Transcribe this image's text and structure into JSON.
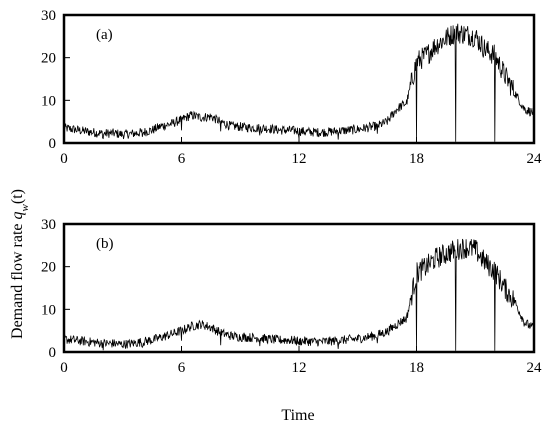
{
  "chart_data": [
    {
      "type": "line",
      "panel_label": "(a)",
      "xlim": [
        0,
        24
      ],
      "ylim": [
        0,
        30
      ],
      "xticks": [
        0,
        6,
        12,
        18,
        24
      ],
      "yticks": [
        0,
        10,
        20,
        30
      ],
      "grid": false,
      "series": [
        {
          "x": [
            0,
            0.5,
            1,
            1.5,
            2,
            2.5,
            3,
            3.5,
            4,
            4.5,
            5,
            5.5,
            6,
            6.5,
            7,
            7.5,
            8,
            8.5,
            9,
            9.5,
            10,
            10.5,
            11,
            11.5,
            12,
            12.5,
            13,
            13.5,
            14,
            14.5,
            15,
            15.5,
            16,
            16.5,
            17,
            17.5,
            18,
            18.5,
            19,
            19.5,
            20,
            20.5,
            21,
            21.5,
            22,
            22.5,
            23,
            23.5,
            24
          ],
          "values": [
            3.5,
            3.2,
            2.8,
            2.5,
            2.2,
            2.3,
            2.0,
            2.2,
            2.5,
            3.0,
            4.0,
            4.5,
            5.5,
            6.5,
            6.0,
            6.2,
            5.0,
            4.0,
            3.8,
            3.6,
            3.5,
            3.4,
            3.0,
            3.0,
            2.8,
            2.6,
            2.5,
            2.6,
            2.8,
            3.0,
            3.2,
            3.6,
            4.0,
            5.0,
            8.0,
            9.5,
            19.0,
            20.5,
            23.0,
            24.5,
            26.0,
            25.5,
            25.0,
            22.0,
            20.5,
            16.0,
            12.0,
            8.0,
            7.0
          ]
        }
      ]
    },
    {
      "type": "line",
      "panel_label": "(b)",
      "xlim": [
        0,
        24
      ],
      "ylim": [
        0,
        30
      ],
      "xticks": [
        0,
        6,
        12,
        18,
        24
      ],
      "yticks": [
        0,
        10,
        20,
        30
      ],
      "grid": false,
      "series": [
        {
          "x": [
            0,
            0.5,
            1,
            1.5,
            2,
            2.5,
            3,
            3.5,
            4,
            4.5,
            5,
            5.5,
            6,
            6.5,
            7,
            7.5,
            8,
            8.5,
            9,
            9.5,
            10,
            10.5,
            11,
            11.5,
            12,
            12.5,
            13,
            13.5,
            14,
            14.5,
            15,
            15.5,
            16,
            16.5,
            17,
            17.5,
            18,
            18.5,
            19,
            19.5,
            20,
            20.5,
            21,
            21.5,
            22,
            22.5,
            23,
            23.5,
            24
          ],
          "values": [
            3.0,
            2.8,
            2.5,
            2.3,
            2.0,
            2.0,
            1.8,
            2.0,
            2.4,
            2.8,
            3.5,
            4.2,
            5.0,
            6.0,
            6.5,
            5.8,
            4.5,
            3.8,
            3.5,
            3.4,
            3.3,
            3.0,
            2.8,
            2.8,
            2.6,
            2.5,
            2.4,
            2.5,
            2.7,
            2.9,
            3.1,
            3.5,
            4.0,
            4.8,
            6.5,
            8.0,
            18.5,
            20.0,
            22.0,
            23.0,
            24.0,
            24.5,
            24.0,
            21.0,
            19.0,
            15.0,
            12.0,
            7.0,
            5.5
          ]
        }
      ]
    }
  ],
  "ylabel_prefix": "Demand flow rate ",
  "ylabel_var": "q",
  "ylabel_sub": "w",
  "ylabel_suffix": "(t)",
  "xlabel": "Time"
}
